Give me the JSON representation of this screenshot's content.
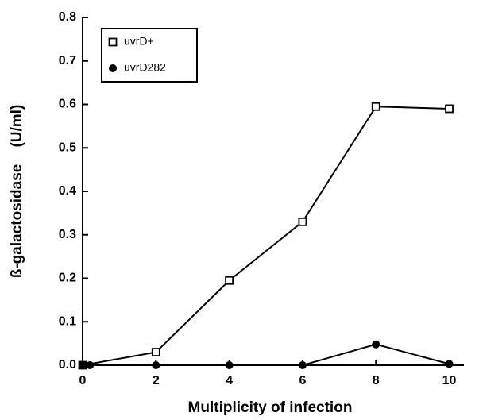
{
  "chart_data": {
    "type": "line",
    "xlabel": "Multiplicity of infection",
    "ylabel": "ß-galactosidase    (U/ml)",
    "xlim": [
      0,
      10.4
    ],
    "xticks": [
      0,
      2,
      4,
      6,
      8,
      10
    ],
    "ylim": [
      0,
      0.8
    ],
    "yticks": [
      {
        "value": 0,
        "label": "0.0"
      },
      0.1,
      0.2,
      0.3,
      0.4,
      0.5,
      0.6,
      0.7,
      0.8
    ],
    "legend": "top-left",
    "series": [
      {
        "name": "uvrD+",
        "color": "#000000",
        "marker": "square",
        "x": [
          0,
          2,
          4,
          6,
          8,
          10
        ],
        "values": [
          0,
          0.03,
          0.195,
          0.33,
          0.595,
          0.59
        ]
      },
      {
        "name": "uvrD282",
        "color": "#000000",
        "marker": "circle",
        "x": [
          0,
          0.2,
          2,
          4,
          6,
          8,
          10
        ],
        "values": [
          0,
          0,
          0,
          0,
          0,
          0.048,
          0.003
        ]
      }
    ]
  }
}
